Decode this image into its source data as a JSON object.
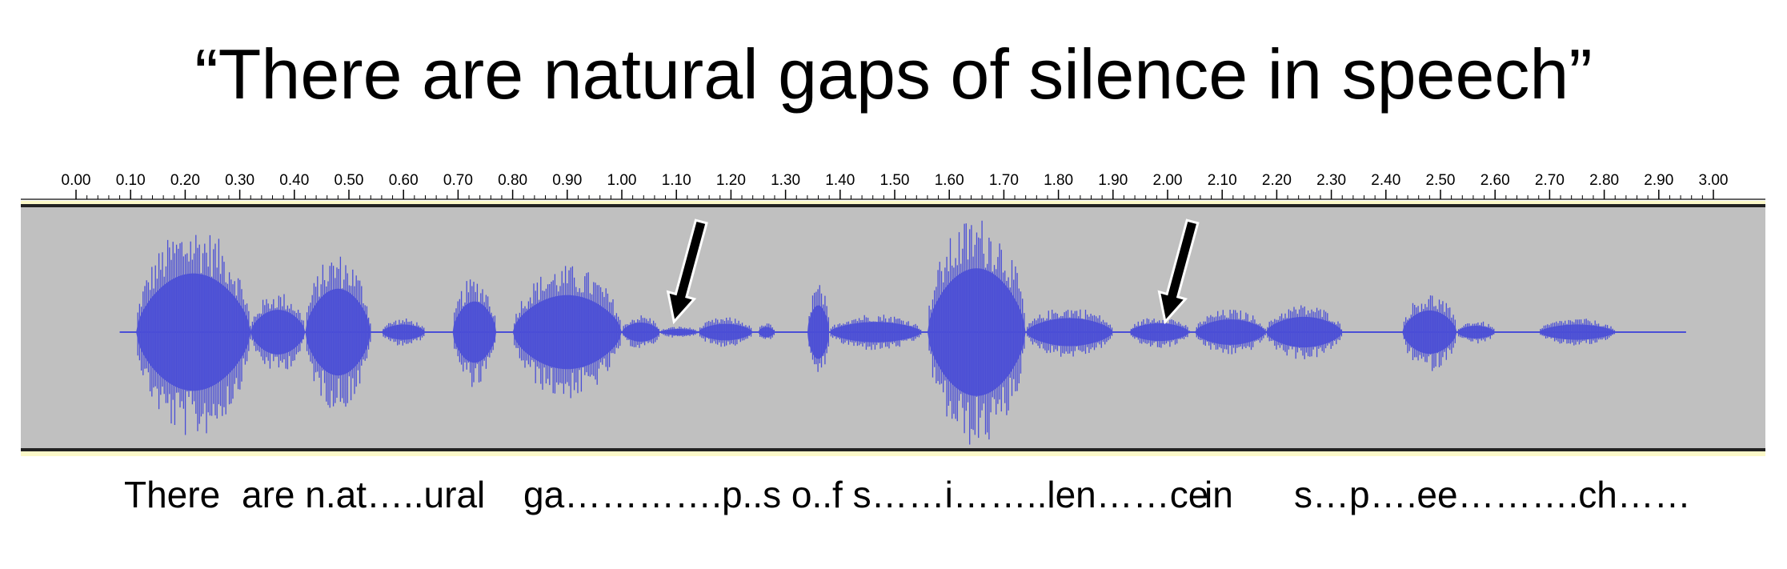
{
  "title": "“There are natural gaps of silence in speech”",
  "ruler": {
    "ticks": [
      "0.00",
      "0.10",
      "0.20",
      "0.30",
      "0.40",
      "0.50",
      "0.60",
      "0.70",
      "0.80",
      "0.90",
      "1.00",
      "1.10",
      "1.20",
      "1.30",
      "1.40",
      "1.50",
      "1.60",
      "1.70",
      "1.80",
      "1.90",
      "2.00",
      "2.10",
      "2.20",
      "2.30",
      "2.40",
      "2.50",
      "2.60",
      "2.70",
      "2.80",
      "2.90",
      "3.00"
    ]
  },
  "waveform": {
    "color": "#4a4ed6",
    "background": "#c0c0c0",
    "duration_s": 3.0,
    "segments": [
      {
        "start": 0.11,
        "end": 0.32,
        "amplitude": 0.92
      },
      {
        "start": 0.32,
        "end": 0.42,
        "amplitude": 0.35
      },
      {
        "start": 0.42,
        "end": 0.54,
        "amplitude": 0.68
      },
      {
        "start": 0.56,
        "end": 0.64,
        "amplitude": 0.12
      },
      {
        "start": 0.69,
        "end": 0.77,
        "amplitude": 0.48
      },
      {
        "start": 0.8,
        "end": 1.0,
        "amplitude": 0.58
      },
      {
        "start": 1.0,
        "end": 1.07,
        "amplitude": 0.15
      },
      {
        "start": 1.07,
        "end": 1.14,
        "amplitude": 0.05
      },
      {
        "start": 1.14,
        "end": 1.24,
        "amplitude": 0.13
      },
      {
        "start": 1.25,
        "end": 1.28,
        "amplitude": 0.08
      },
      {
        "start": 1.34,
        "end": 1.38,
        "amplitude": 0.42
      },
      {
        "start": 1.38,
        "end": 1.55,
        "amplitude": 0.16
      },
      {
        "start": 1.56,
        "end": 1.74,
        "amplitude": 1.0
      },
      {
        "start": 1.74,
        "end": 1.9,
        "amplitude": 0.22
      },
      {
        "start": 1.93,
        "end": 2.04,
        "amplitude": 0.14
      },
      {
        "start": 2.05,
        "end": 2.18,
        "amplitude": 0.2
      },
      {
        "start": 2.18,
        "end": 2.32,
        "amplitude": 0.24
      },
      {
        "start": 2.43,
        "end": 2.53,
        "amplitude": 0.34
      },
      {
        "start": 2.53,
        "end": 2.6,
        "amplitude": 0.1
      },
      {
        "start": 2.68,
        "end": 2.82,
        "amplitude": 0.12
      }
    ]
  },
  "annotations": [
    {
      "time": 1.1,
      "label": "silence-gap-arrow"
    },
    {
      "time": 2.0,
      "label": "silence-gap-arrow"
    }
  ],
  "transcript": {
    "words": [
      "There",
      "are n.at…..ural",
      "ga………….p..s o..f s……i……..len……ce",
      "in",
      "s…p….ee……….ch……"
    ]
  }
}
